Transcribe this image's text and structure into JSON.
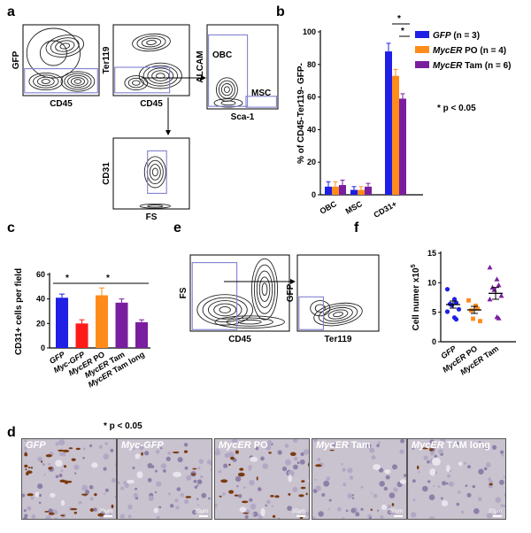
{
  "panel_letters": [
    "a",
    "b",
    "c",
    "d",
    "e",
    "f"
  ],
  "flow_a": {
    "plot1": {
      "ylabel": "GFP",
      "xlabel": "CD45"
    },
    "plot2": {
      "ylabel": "Ter119",
      "xlabel": "CD45"
    },
    "plot3": {
      "ylabel": "ALCAM",
      "xlabel": "Sca-1",
      "gate1": "OBC",
      "gate2": "MSC"
    },
    "plot4": {
      "ylabel": "CD31",
      "xlabel": "FS"
    }
  },
  "flow_e": {
    "plot1": {
      "ylabel": "FS",
      "xlabel": "CD45"
    },
    "plot2": {
      "ylabel": "GFP",
      "xlabel": "Ter119"
    }
  },
  "chart_data": [
    {
      "panel": "b",
      "type": "bar",
      "ylabel": "% of CD45-Ter119- GFP-",
      "categories": [
        "OBC",
        "MSC",
        "CD31+"
      ],
      "ylim": [
        0,
        100
      ],
      "yticks": [
        0,
        20,
        40,
        60,
        80,
        100
      ],
      "series": [
        {
          "name": "GFP (n = 3)",
          "name_italic": "GFP",
          "name_rest": " (n = 3)",
          "color": "#1f1fe6",
          "values": [
            5,
            3,
            88
          ],
          "errors": [
            3,
            2,
            5
          ]
        },
        {
          "name": "MycER PO (n = 4)",
          "name_italic": "MycER",
          "name_rest": " PO (n = 4)",
          "color": "#ff8c1a",
          "values": [
            5,
            3,
            73
          ],
          "errors": [
            3,
            2,
            4
          ]
        },
        {
          "name": "MycER Tam (n = 6)",
          "name_italic": "MycER",
          "name_rest": " Tam (n = 6)",
          "color": "#7a1ea0",
          "values": [
            6,
            5,
            59
          ],
          "errors": [
            3,
            2,
            3
          ]
        }
      ],
      "legend_position": "top-right",
      "annotation": "* p < 0.05",
      "sig_marks": [
        "*",
        "*"
      ]
    },
    {
      "panel": "c",
      "type": "bar",
      "ylabel": "CD31+ cells per field",
      "categories": [
        "GFP",
        "Myc-GFP",
        "MycER PO",
        "MycER Tam",
        "MycER Tam long"
      ],
      "category_parts": [
        {
          "italic": "GFP",
          "rest": ""
        },
        {
          "italic": "Myc-GFP",
          "rest": ""
        },
        {
          "italic": "MycER",
          "rest": " PO"
        },
        {
          "italic": "MycER",
          "rest": " Tam"
        },
        {
          "italic": "MycER",
          "rest": " Tam long"
        }
      ],
      "colors": [
        "#1f1fe6",
        "#ff1a1a",
        "#ff8c1a",
        "#7a1ea0",
        "#7a1ea0"
      ],
      "values": [
        41,
        20,
        43,
        37,
        21
      ],
      "errors": [
        3,
        3,
        6,
        3,
        2
      ],
      "ylim": [
        0,
        60
      ],
      "yticks": [
        0,
        20,
        40,
        60
      ],
      "annotation": "* p < 0.05",
      "sig_marks": [
        "*",
        "*"
      ]
    },
    {
      "panel": "f",
      "type": "scatter",
      "ylabel": "Cell numer x10",
      "ylabel_sup": "5",
      "categories": [
        "GFP",
        "MycER PO",
        "MycER Tam"
      ],
      "category_parts": [
        {
          "italic": "GFP",
          "rest": ""
        },
        {
          "italic": "MycER",
          "rest": " PO"
        },
        {
          "italic": "MycER",
          "rest": " Tam"
        }
      ],
      "colors": [
        "#1f1fe6",
        "#ff8c1a",
        "#7a1ea0"
      ],
      "markers": [
        "circle",
        "square",
        "triangle"
      ],
      "series": [
        {
          "name": "GFP",
          "points": [
            8.9,
            7.2,
            6.6,
            6.4,
            6.2,
            5.5,
            5.1,
            4.1,
            3.8
          ],
          "mean": 6.3,
          "sem": 0.6
        },
        {
          "name": "MycER PO",
          "points": [
            7.0,
            6.1,
            5.6,
            5.3,
            3.9,
            3.5
          ],
          "mean": 5.4,
          "sem": 0.6
        },
        {
          "name": "MycER Tam",
          "points": [
            12.6,
            10.6,
            9.6,
            9.2,
            8.8,
            7.8,
            7.2,
            4.2,
            4.0
          ],
          "mean": 8.2,
          "sem": 1.0
        }
      ],
      "ylim": [
        0,
        15
      ],
      "yticks": [
        0,
        5,
        10,
        15
      ]
    }
  ],
  "panel_d": {
    "images": [
      {
        "label_italic": "GFP",
        "label_rest": "",
        "scale": "20µm"
      },
      {
        "label_italic": "Myc-GFP",
        "label_rest": "",
        "scale": "20µm"
      },
      {
        "label_italic": "MycER",
        "label_rest": " PO",
        "scale": "20µm"
      },
      {
        "label_italic": "MycER",
        "label_rest": " Tam",
        "scale": "20µm"
      },
      {
        "label_italic": "MycER",
        "label_rest": " TAM long",
        "scale": "20µm"
      }
    ]
  },
  "colors": {
    "gate": "#8080d0",
    "contour": "#222222"
  }
}
